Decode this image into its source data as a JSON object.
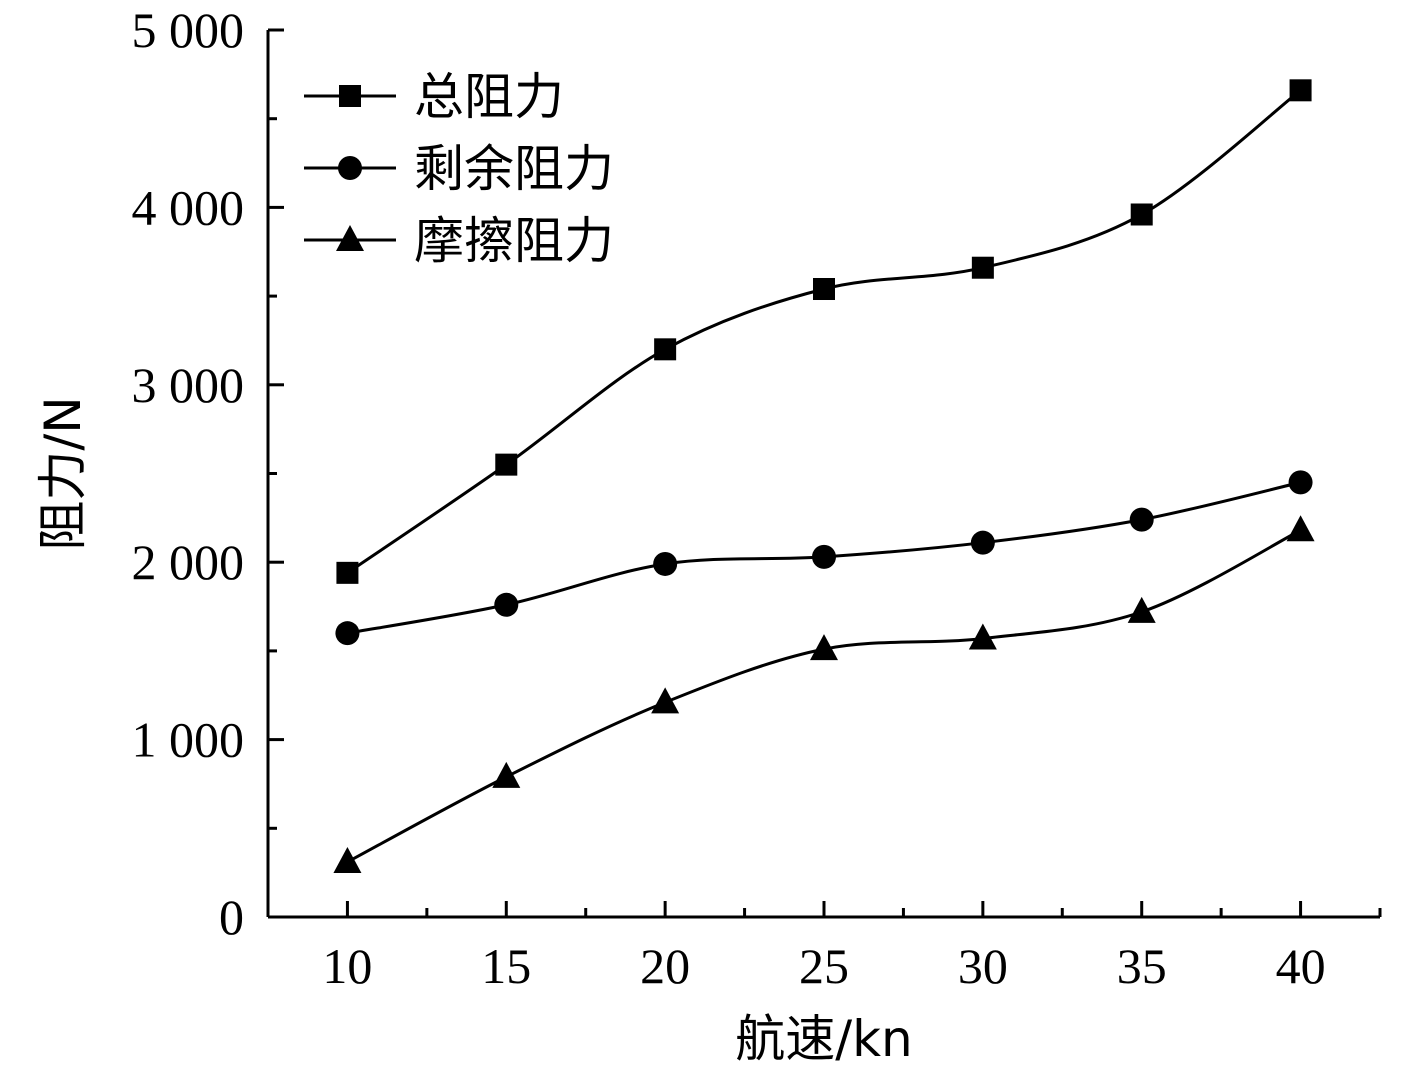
{
  "chart_data": {
    "type": "line",
    "title": "",
    "xlabel": "航速/kn",
    "ylabel": "阻力/N",
    "x": [
      10,
      15,
      20,
      25,
      30,
      35,
      40
    ],
    "x_ticks": [
      "10",
      "15",
      "20",
      "25",
      "30",
      "35",
      "40"
    ],
    "y_ticks": [
      "0",
      "1 000",
      "2 000",
      "3 000",
      "4 000",
      "5 000"
    ],
    "xlim": [
      7.5,
      42.5
    ],
    "ylim": [
      0,
      5000
    ],
    "grid": false,
    "legend_position": "top-left",
    "series": [
      {
        "name": "总阻力",
        "marker": "square",
        "values": [
          1940,
          2550,
          3200,
          3540,
          3660,
          3960,
          4660
        ]
      },
      {
        "name": "剩余阻力",
        "marker": "circle",
        "values": [
          1600,
          1760,
          1990,
          2030,
          2110,
          2240,
          2450
        ]
      },
      {
        "name": "摩擦阻力",
        "marker": "triangle",
        "values": [
          310,
          790,
          1210,
          1510,
          1570,
          1720,
          2180
        ]
      }
    ]
  }
}
